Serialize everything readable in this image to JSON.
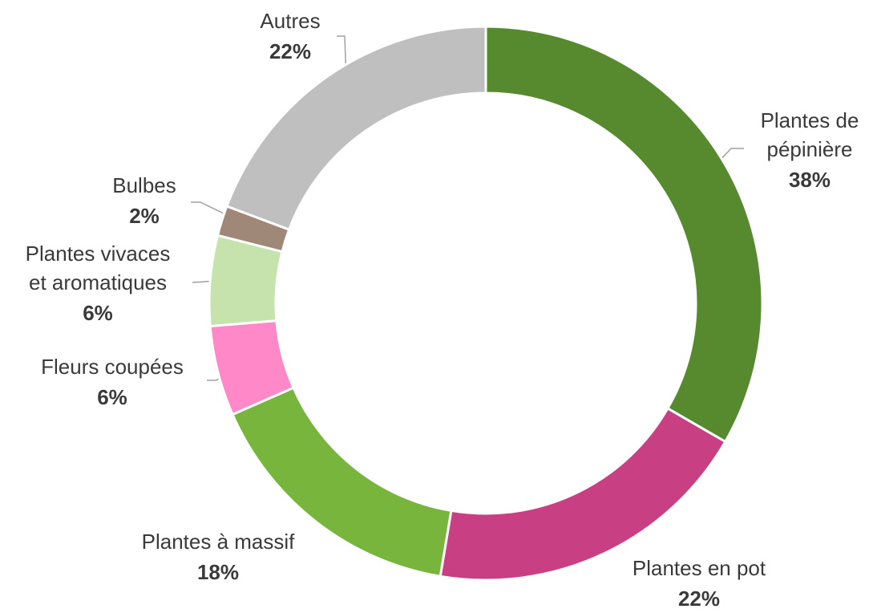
{
  "chart_data": {
    "type": "donut",
    "categories": [
      "Plantes de\npépinière",
      "Plantes en pot",
      "Plantes à massif",
      "Fleurs coupées",
      "Plantes vivaces\net aromatiques",
      "Bulbes",
      "Autres"
    ],
    "values": [
      38,
      22,
      18,
      6,
      6,
      2,
      22
    ],
    "value_labels": [
      "38%",
      "22%",
      "18%",
      "6%",
      "6%",
      "2%",
      "22%"
    ],
    "colors": [
      "#578a2e",
      "#c93f84",
      "#77b53c",
      "#fe88c8",
      "#c6e3ae",
      "#a08878",
      "#bfbfbf"
    ]
  }
}
